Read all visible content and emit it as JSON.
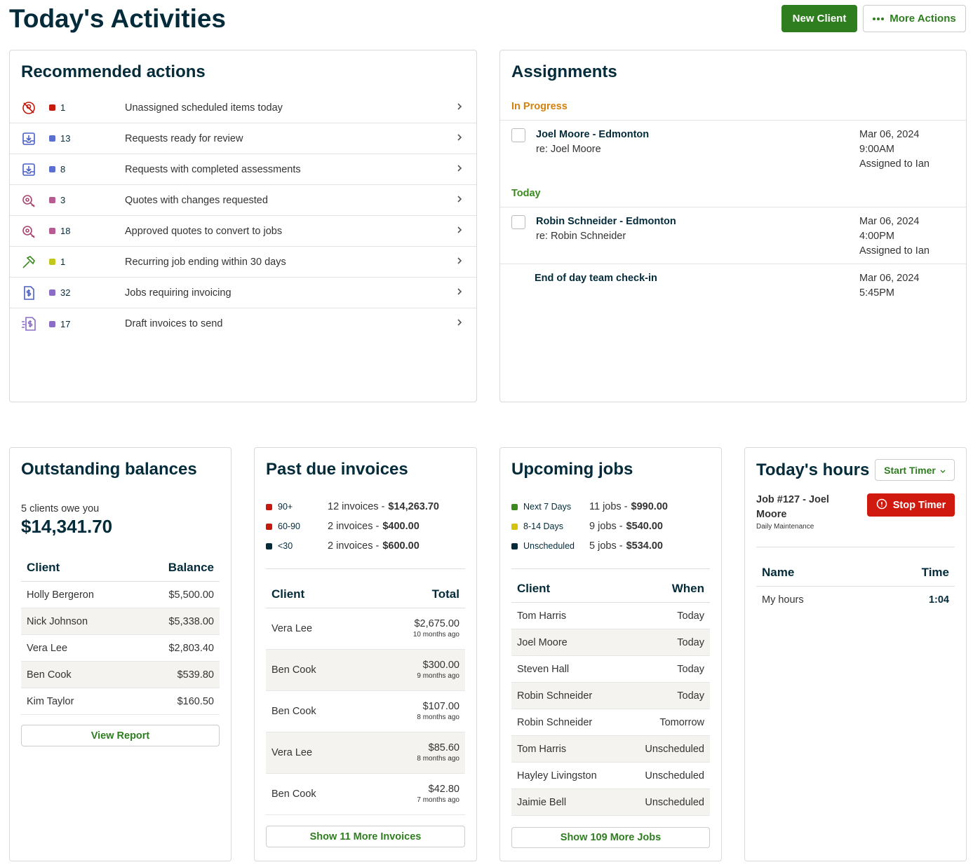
{
  "header": {
    "title": "Today's Activities",
    "buttons": [
      "New Client",
      "More Actions"
    ]
  },
  "recommended_actions": {
    "title": "Recommended actions",
    "items": [
      {
        "count": 1,
        "color": "#c4190c",
        "label": "Unassigned scheduled items today"
      },
      {
        "count": 13,
        "color": "#5b6fd1",
        "label": "Requests ready for review"
      },
      {
        "count": 8,
        "color": "#5b6fd1",
        "label": "Requests with completed assessments"
      },
      {
        "count": 3,
        "color": "#b95b93",
        "label": "Quotes with changes requested"
      },
      {
        "count": 18,
        "color": "#b95b93",
        "label": "Approved quotes to convert to jobs"
      },
      {
        "count": 1,
        "color": "#c2c71c",
        "label": "Recurring job ending within 30 days"
      },
      {
        "count": 32,
        "color": "#8a6cc6",
        "label": "Jobs requiring invoicing"
      },
      {
        "count": 17,
        "color": "#8a6cc6",
        "label": "Draft invoices to send"
      }
    ]
  },
  "assignments": {
    "title": "Assignments",
    "groups": [
      {
        "label": "In Progress",
        "color": "#d4820f",
        "items": [
          {
            "title": "Joel Moore - Edmonton",
            "subtitle": "re: Joel Moore",
            "date": "Mar 06, 2024",
            "time": "9:00AM",
            "assignee": "Assigned to Ian"
          }
        ]
      },
      {
        "label": "Today",
        "color": "#3a8a1e",
        "items": [
          {
            "title": "Robin Schneider - Edmonton",
            "subtitle": "re: Robin Schneider",
            "date": "Mar 06, 2024",
            "time": "4:00PM",
            "assignee": "Assigned to Ian"
          },
          {
            "title": "End of day team check-in",
            "date": "Mar 06, 2024",
            "time": "5:45PM"
          }
        ]
      }
    ]
  },
  "outstanding_balances": {
    "title": "Outstanding balances",
    "summary": "5 clients owe you",
    "total": "$14,341.70",
    "columns": [
      "Client",
      "Balance"
    ],
    "rows": [
      [
        "Holly Bergeron",
        "$5,500.00"
      ],
      [
        "Nick Johnson",
        "$5,338.00"
      ],
      [
        "Vera Lee",
        "$2,803.40"
      ],
      [
        "Ben Cook",
        "$539.80"
      ],
      [
        "Kim Taylor",
        "$160.50"
      ]
    ],
    "button": "View Report"
  },
  "past_due_invoices": {
    "title": "Past due invoices",
    "buckets": [
      {
        "label": "90+",
        "color": "#c4190c",
        "summary": "12 invoices -",
        "amount": "$14,263.70"
      },
      {
        "label": "60-90",
        "color": "#c4190c",
        "summary": "2 invoices -",
        "amount": "$400.00"
      },
      {
        "label": "<30",
        "color": "#032b3a",
        "summary": "2 invoices -",
        "amount": "$600.00"
      }
    ],
    "columns": [
      "Client",
      "Total"
    ],
    "rows": [
      {
        "client": "Vera Lee",
        "total": "$2,675.00",
        "age": "10 months ago"
      },
      {
        "client": "Ben Cook",
        "total": "$300.00",
        "age": "9 months ago"
      },
      {
        "client": "Ben Cook",
        "total": "$107.00",
        "age": "8 months ago"
      },
      {
        "client": "Vera Lee",
        "total": "$85.60",
        "age": "8 months ago"
      },
      {
        "client": "Ben Cook",
        "total": "$42.80",
        "age": "7 months ago"
      }
    ],
    "button": "Show 11 More Invoices"
  },
  "upcoming_jobs": {
    "title": "Upcoming jobs",
    "buckets": [
      {
        "label": "Next 7 Days",
        "color": "#3a8a1e",
        "summary": "11 jobs -",
        "amount": "$990.00"
      },
      {
        "label": "8-14 Days",
        "color": "#d6c20d",
        "summary": "9 jobs -",
        "amount": "$540.00"
      },
      {
        "label": "Unscheduled",
        "color": "#032b3a",
        "summary": "5 jobs -",
        "amount": "$534.00"
      }
    ],
    "columns": [
      "Client",
      "When"
    ],
    "rows": [
      [
        "Tom Harris",
        "Today"
      ],
      [
        "Joel Moore",
        "Today"
      ],
      [
        "Steven Hall",
        "Today"
      ],
      [
        "Robin Schneider",
        "Today"
      ],
      [
        "Robin Schneider",
        "Tomorrow"
      ],
      [
        "Tom Harris",
        "Unscheduled"
      ],
      [
        "Hayley Livingston",
        "Unscheduled"
      ],
      [
        "Jaimie Bell",
        "Unscheduled"
      ]
    ],
    "button": "Show 109 More Jobs"
  },
  "todays_hours": {
    "title": "Today's hours",
    "timer_button": "Start Timer",
    "job": "Job #127 - Joel Moore",
    "job_detail": "Daily Maintenance",
    "stop_button": "Stop Timer",
    "columns": [
      "Name",
      "Time"
    ],
    "rows": [
      [
        "My hours",
        "1:04"
      ]
    ]
  }
}
